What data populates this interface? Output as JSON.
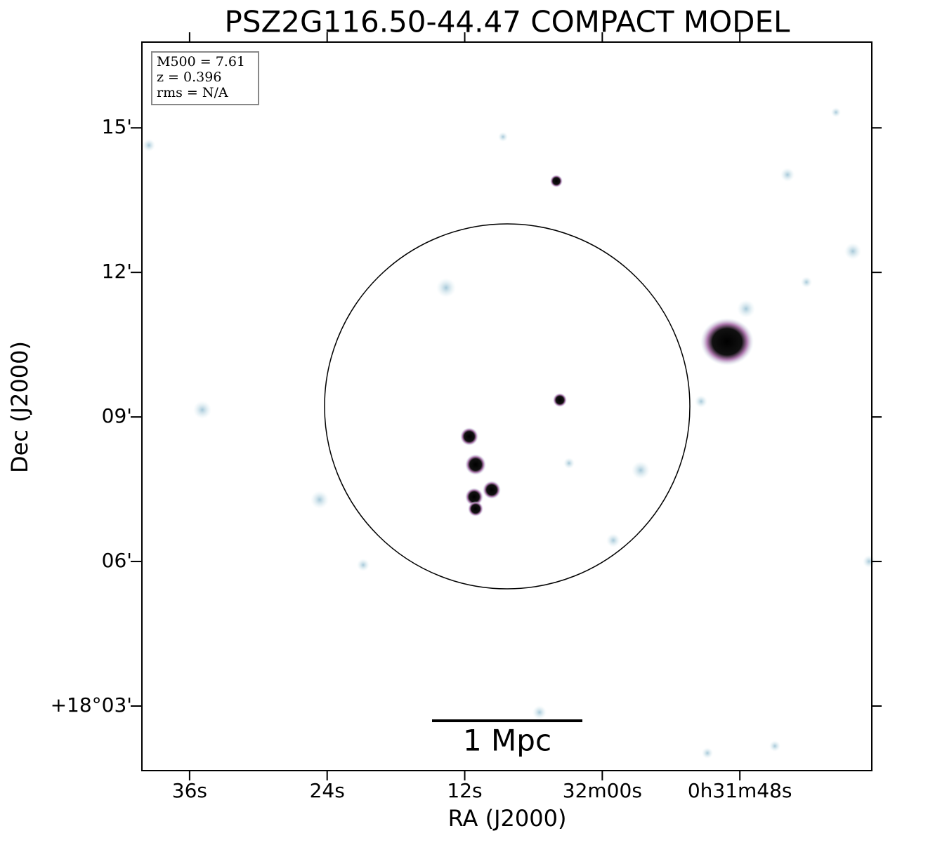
{
  "chart_data": {
    "type": "image",
    "title": "PSZ2G116.50-44.47 COMPACT MODEL",
    "x_label": "RA (J2000)",
    "y_label": "Dec (J2000)",
    "xlim": [
      100.16,
      36.49
    ],
    "ylim": [
      1.66,
      16.78
    ],
    "xticks": [
      {
        "value": 96,
        "label": "36s"
      },
      {
        "value": 84,
        "label": "24s"
      },
      {
        "value": 72,
        "label": "12s"
      },
      {
        "value": 60,
        "label": "32m00s"
      },
      {
        "value": 48,
        "label": "0h31m48s"
      }
    ],
    "yticks": [
      {
        "value": 15,
        "label": "15'"
      },
      {
        "value": 12,
        "label": "12'"
      },
      {
        "value": 9,
        "label": "09'"
      },
      {
        "value": 6,
        "label": "06'"
      },
      {
        "value": 3,
        "label": "+18°03'"
      }
    ],
    "annotations": [
      "M500 = 7.61",
      "z = 0.396",
      "rms = N/A"
    ],
    "scale_bar_label": "1 Mpc"
  }
}
